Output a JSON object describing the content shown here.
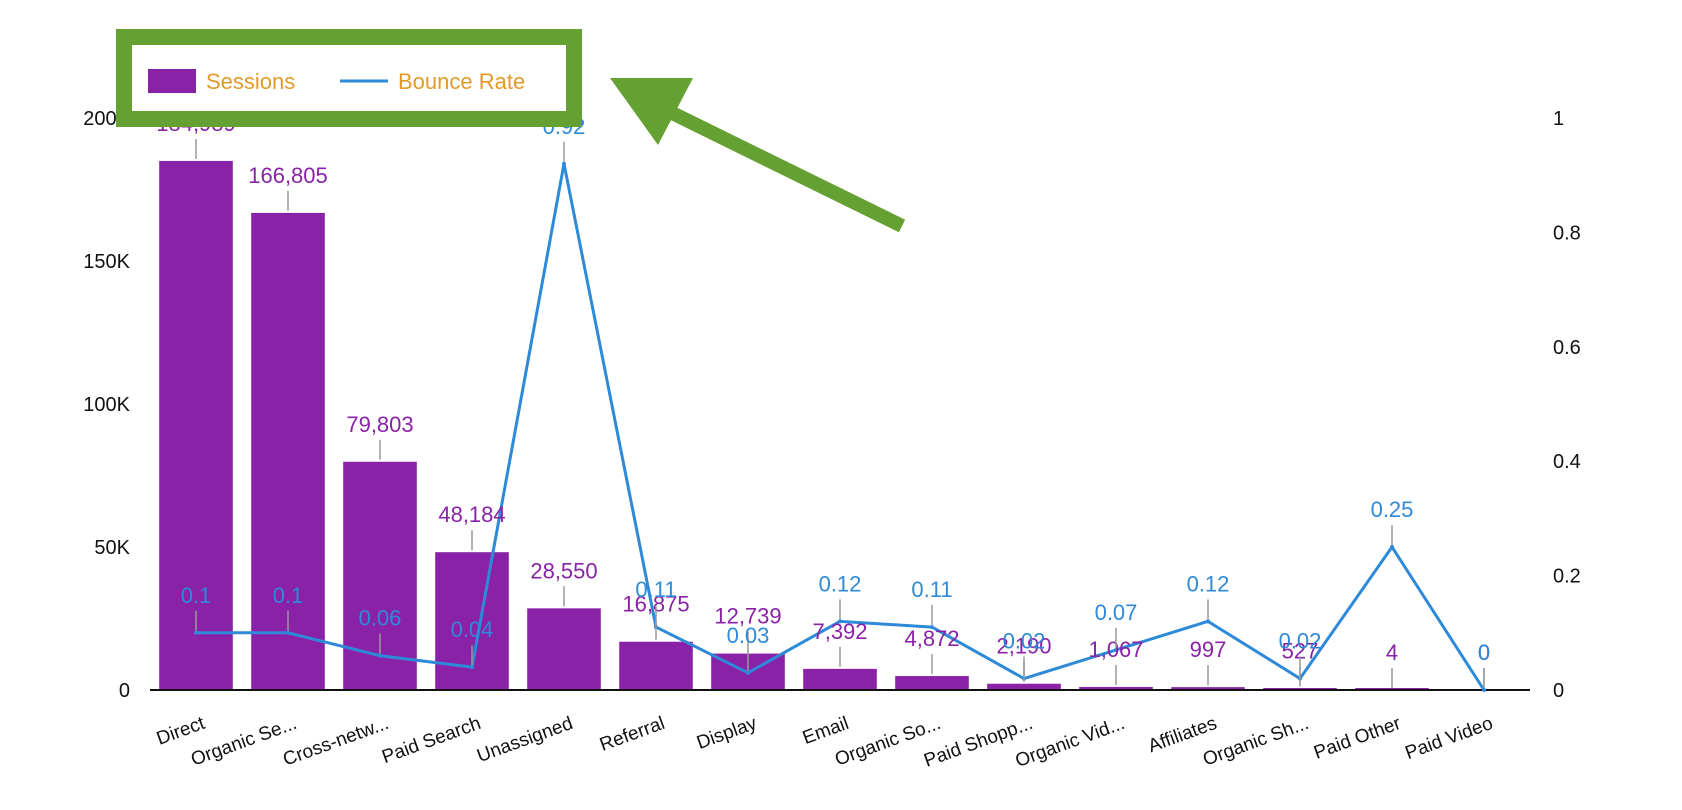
{
  "colors": {
    "sessions": "#8a22a8",
    "bounce": "#2e8ad8",
    "legend_text": "#e39a2a",
    "highlight": "#64a032",
    "axis": "#111111"
  },
  "legend": {
    "sessions_label": "Sessions",
    "bounce_label": "Bounce Rate",
    "position": "top-left"
  },
  "chart_data": {
    "type": "bar",
    "categories": [
      "Direct",
      "Organic Se...",
      "Cross-netw...",
      "Paid Search",
      "Unassigned",
      "Referral",
      "Display",
      "Email",
      "Organic So...",
      "Paid Shopp...",
      "Organic Vid...",
      "Affiliates",
      "Organic Sh...",
      "Paid Other",
      "Paid Video"
    ],
    "series": [
      {
        "name": "Sessions",
        "type": "bar",
        "axis": "left",
        "values": [
          184989,
          166805,
          79803,
          48184,
          28550,
          16875,
          12739,
          7392,
          4872,
          2190,
          1067,
          997,
          527,
          4,
          0
        ],
        "labels": [
          "184,989",
          "166,805",
          "79,803",
          "48,184",
          "28,550",
          "16,875",
          "12,739",
          "7,392",
          "4,872",
          "2,190",
          "1,067",
          "997",
          "527",
          "4",
          "0"
        ]
      },
      {
        "name": "Bounce Rate",
        "type": "line",
        "axis": "right",
        "values": [
          0.1,
          0.1,
          0.06,
          0.04,
          0.92,
          0.11,
          0.03,
          0.12,
          0.11,
          0.02,
          0.07,
          0.12,
          0.02,
          0.25,
          0
        ],
        "labels": [
          "0.1",
          "0.1",
          "0.06",
          "0.04",
          "0.92",
          "0.11",
          "0.03",
          "0.12",
          "0.11",
          "0.02",
          "0.07",
          "0.12",
          "0.02",
          "0.25",
          "0"
        ]
      }
    ],
    "y_left": {
      "min": 0,
      "max": 200000,
      "ticks": [
        0,
        50000,
        100000,
        150000,
        200000
      ],
      "tick_labels": [
        "0",
        "50K",
        "100K",
        "150K",
        "200K"
      ]
    },
    "y_right": {
      "min": 0,
      "max": 1,
      "ticks": [
        0,
        0.2,
        0.4,
        0.6,
        0.8,
        1
      ],
      "tick_labels": [
        "0",
        "0.2",
        "0.4",
        "0.6",
        "0.8",
        "1"
      ]
    },
    "grid": false
  }
}
